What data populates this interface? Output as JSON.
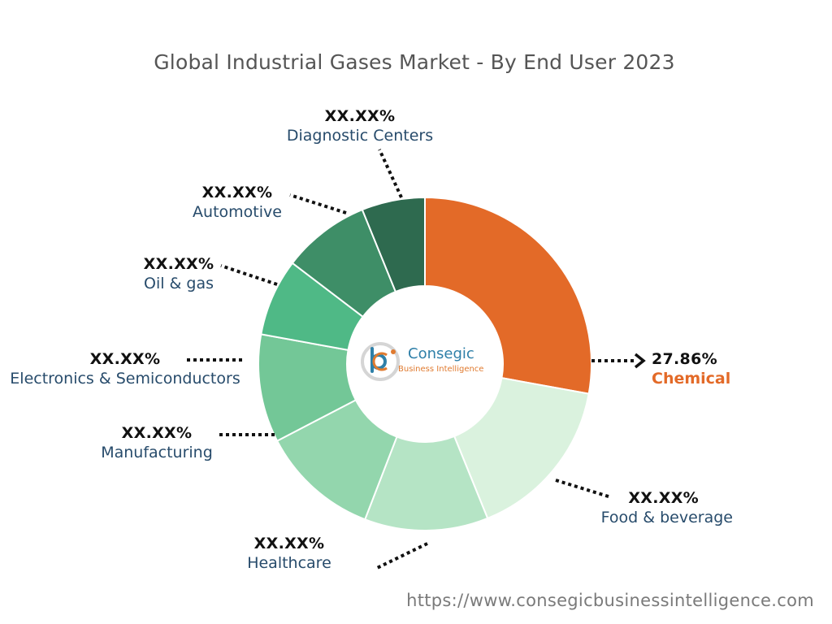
{
  "chart_data": {
    "type": "pie",
    "title": "Global Industrial Gases Market - By End User 2023",
    "segments": [
      {
        "name": "Chemical",
        "label": "27.86%",
        "value": 27.86,
        "color": "#e36a28"
      },
      {
        "name": "Food & beverage",
        "label": "XX.XX%",
        "value": 16.0,
        "color": "#daf2de"
      },
      {
        "name": "Healthcare",
        "label": "XX.XX%",
        "value": 12.0,
        "color": "#b5e4c5"
      },
      {
        "name": "Manufacturing",
        "label": "XX.XX%",
        "value": 11.5,
        "color": "#93d6ad"
      },
      {
        "name": "Electronics & Semiconductors",
        "label": "XX.XX%",
        "value": 10.5,
        "color": "#73c797"
      },
      {
        "name": "Oil & gas",
        "label": "XX.XX%",
        "value": 7.5,
        "color": "#4fb986"
      },
      {
        "name": "Automotive",
        "label": "XX.XX%",
        "value": 8.5,
        "color": "#3e8e67"
      },
      {
        "name": "Diagnostic Centers",
        "label": "XX.XX%",
        "value": 6.14,
        "color": "#2e6a4f"
      }
    ]
  },
  "logo": {
    "name": "Consegic",
    "tagline": "Business Intelligence"
  },
  "footer": {
    "url": "https://www.consegicbusinessintelligence.com"
  }
}
